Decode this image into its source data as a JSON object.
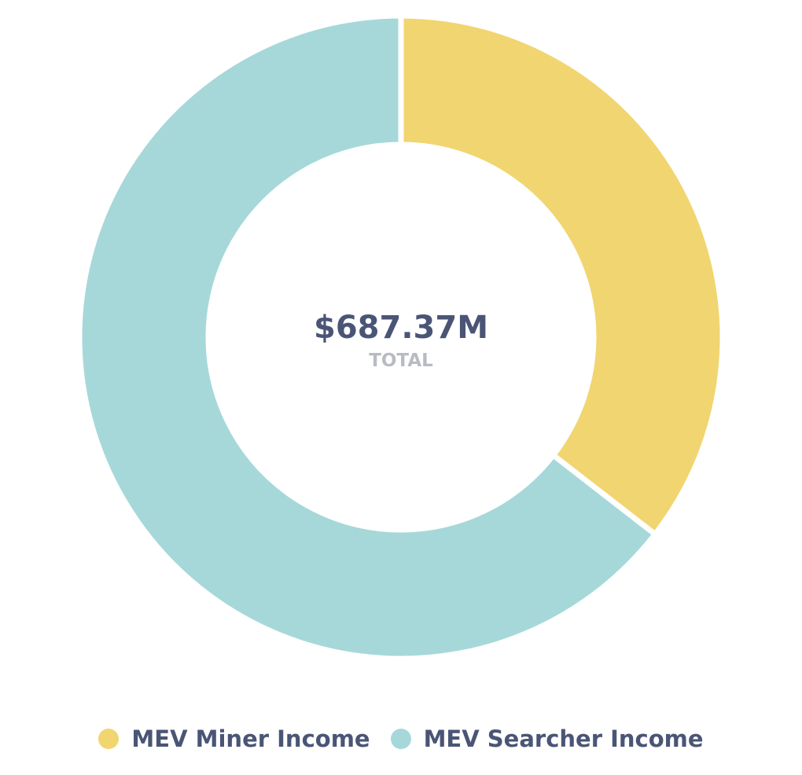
{
  "chart_data": {
    "type": "pie",
    "variant": "donut",
    "center": {
      "value": "$687.37M",
      "label": "TOTAL"
    },
    "series": [
      {
        "name": "MEV Miner Income",
        "share": 0.355,
        "color": "#F1D570"
      },
      {
        "name": "MEV Searcher Income",
        "share": 0.645,
        "color": "#A6D8D9"
      }
    ],
    "legend_position": "bottom",
    "colors": {
      "center_value": "#4A5576",
      "center_label": "#B8BBC2",
      "legend_text": "#4A5576",
      "separator": "#ffffff"
    }
  }
}
